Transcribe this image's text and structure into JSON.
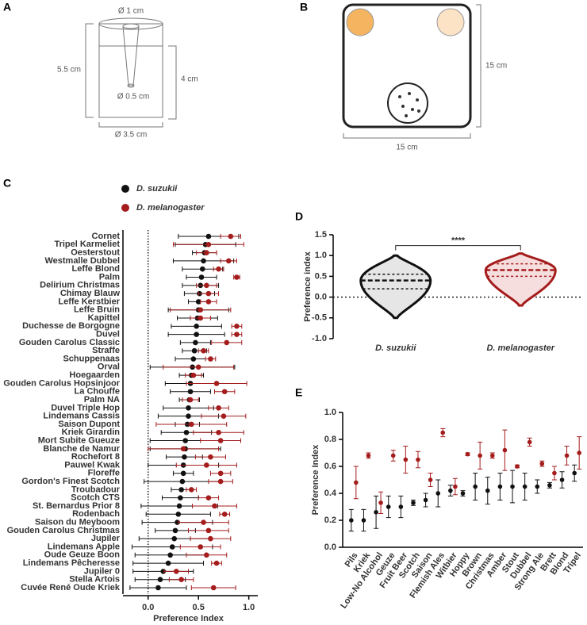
{
  "panel_labels": [
    "A",
    "B",
    "C",
    "D",
    "E"
  ],
  "diagram_a": {
    "top_diameter": "Ø 1 cm",
    "height": "5.5 cm",
    "depth": "4 cm",
    "tip_diameter": "Ø 0.5 cm",
    "base_diameter": "Ø 3.5 cm"
  },
  "diagram_b": {
    "height": "15 cm",
    "width": "15 cm"
  },
  "chart_data": [
    {
      "type": "dot",
      "orientation": "horizontal",
      "xlabel": "Preference Index",
      "categories": [
        "Cornet",
        "Tripel Karmeliet",
        "Oesterstout",
        "Westmalle Dubbel",
        "Leffe Blond",
        "Palm",
        "Delirium Christmas",
        "Chimay Blauw",
        "Leffe Kerstbier",
        "Leffe Bruin",
        "Kapittel",
        "Duchesse de Borgogne",
        "Duvel",
        "Gouden Carolus Classic",
        "Straffe",
        "Schuppenaas",
        "Orval",
        "Hoegaarden",
        "Gouden Carolus Hopsinjoor",
        "La Chouffe",
        "Palm NA",
        "Duvel Triple Hop",
        "Lindemans Cassis",
        "Saison Dupont",
        "Kriek Girardin",
        "Mort Subite Gueuze",
        "Blanche de Namur",
        "Rochefort 8",
        "Pauwel Kwak",
        "Floreffe",
        "Gordon's Finest Scotch",
        "Troubadour",
        "Scotch CTS",
        "St. Bernardus Prior 8",
        "Rodenbach",
        "Saison du Meyboom",
        "Gouden Carolus Christmas",
        "Jupiler",
        "Lindemans Apple",
        "Oude Geuze Boon",
        "Lindemans Pêcheresse",
        "Jupiler 0",
        "Stella Artois",
        "Cuvée René Oude Kriek"
      ],
      "series": [
        {
          "name": "D. suzukii",
          "color": "#111111",
          "values": [
            0.6,
            0.57,
            0.56,
            0.55,
            0.54,
            0.53,
            0.52,
            0.51,
            0.5,
            0.5,
            0.49,
            0.48,
            0.48,
            0.47,
            0.46,
            0.45,
            0.44,
            0.43,
            0.42,
            0.42,
            0.41,
            0.4,
            0.4,
            0.39,
            0.38,
            0.37,
            0.37,
            0.36,
            0.35,
            0.35,
            0.34,
            0.33,
            0.32,
            0.31,
            0.3,
            0.29,
            0.27,
            0.26,
            0.24,
            0.22,
            0.2,
            0.15,
            0.12,
            0.1
          ],
          "errors": [
            0.3,
            0.3,
            0.12,
            0.3,
            0.2,
            0.15,
            0.18,
            0.15,
            0.1,
            0.3,
            0.2,
            0.25,
            0.28,
            0.15,
            0.12,
            0.18,
            0.42,
            0.12,
            0.25,
            0.2,
            0.1,
            0.25,
            0.3,
            0.12,
            0.25,
            0.35,
            0.35,
            0.18,
            0.35,
            0.1,
            0.38,
            0.1,
            0.18,
            0.38,
            0.32,
            0.35,
            0.2,
            0.35,
            0.4,
            0.35,
            0.35,
            0.3,
            0.25,
            0.28
          ]
        },
        {
          "name": "D. melanogaster",
          "color": "#a51c1c",
          "values": [
            0.82,
            0.6,
            0.58,
            0.8,
            0.7,
            0.88,
            0.58,
            0.6,
            0.6,
            0.52,
            0.52,
            0.88,
            0.88,
            0.78,
            0.55,
            0.62,
            0.5,
            0.45,
            0.68,
            0.76,
            0.42,
            0.7,
            0.75,
            0.43,
            0.7,
            0.72,
            0.35,
            0.62,
            0.58,
            0.72,
            0.72,
            0.43,
            0.6,
            0.66,
            0.76,
            0.55,
            0.6,
            0.62,
            0.52,
            0.58,
            0.68,
            0.28,
            0.33,
            0.65
          ],
          "errors": [
            0.1,
            0.35,
            0.1,
            0.08,
            0.05,
            0.03,
            0.1,
            0.1,
            0.08,
            0.3,
            0.1,
            0.05,
            0.05,
            0.15,
            0.05,
            0.05,
            0.35,
            0.08,
            0.3,
            0.1,
            0.08,
            0.1,
            0.22,
            0.35,
            0.25,
            0.2,
            0.35,
            0.15,
            0.3,
            0.1,
            0.12,
            0.05,
            0.1,
            0.22,
            0.05,
            0.25,
            0.2,
            0.2,
            0.2,
            0.2,
            0.05,
            0.12,
            0.12,
            0.22
          ]
        }
      ],
      "xlim": [
        -0.25,
        1.05
      ],
      "xticks": [
        {
          "value": 0,
          "label": "0.0"
        },
        0.5,
        {
          "value": 1,
          "label": "1.0"
        }
      ],
      "legend": "top-left"
    },
    {
      "type": "violin",
      "ylabel": "Preference index",
      "categories": [
        "D. suzukii",
        "D. melanogaster"
      ],
      "colors": [
        "#111111",
        "#a51c1c"
      ],
      "min": [
        -0.5,
        -0.2
      ],
      "q1": [
        0.2,
        0.5
      ],
      "median": [
        0.4,
        0.65
      ],
      "q3": [
        0.55,
        0.8
      ],
      "max": [
        1.0,
        1.05
      ],
      "annotation": "****",
      "ylim": [
        -1,
        1.5
      ],
      "yticks": [
        {
          "value": -1,
          "label": "-1.0"
        },
        -0.5,
        {
          "value": 0,
          "label": "0.0"
        },
        0.5,
        {
          "value": 1,
          "label": "1.0"
        },
        1.5
      ]
    },
    {
      "type": "dot",
      "orientation": "vertical",
      "ylabel": "Preference Index",
      "categories": [
        "Pils",
        "Kriek",
        "Low-No Alcohol",
        "Geuze",
        "Fruit Beer",
        "Scotch",
        "Saison",
        "Flemish Ales",
        "Witbier",
        "Hoppy",
        "Brown",
        "Christmas",
        "Amber",
        "Stout",
        "Dubbel",
        "Strong Ale",
        "Brett",
        "Blond",
        "Tripel"
      ],
      "series": [
        {
          "color": "#111111",
          "values": [
            0.2,
            0.2,
            0.26,
            0.3,
            0.3,
            0.33,
            0.35,
            0.4,
            0.42,
            0.4,
            0.45,
            0.42,
            0.45,
            0.45,
            0.45,
            0.45,
            0.46,
            0.5,
            0.55
          ],
          "errors": [
            0.08,
            0.08,
            0.12,
            0.08,
            0.08,
            0.02,
            0.05,
            0.1,
            0.04,
            0.02,
            0.1,
            0.1,
            0.1,
            0.12,
            0.1,
            0.05,
            0.02,
            0.06,
            0.06
          ]
        },
        {
          "color": "#a51c1c",
          "values": [
            0.48,
            0.68,
            0.33,
            0.68,
            0.65,
            0.65,
            0.5,
            0.85,
            0.45,
            0.69,
            0.68,
            0.68,
            0.72,
            0.6,
            0.78,
            0.62,
            0.55,
            0.68,
            0.7
          ],
          "errors": [
            0.12,
            0.02,
            0.08,
            0.04,
            0.1,
            0.06,
            0.05,
            0.03,
            0.06,
            0.01,
            0.1,
            0.02,
            0.15,
            0.01,
            0.03,
            0.02,
            0.05,
            0.07,
            0.12
          ]
        }
      ],
      "ylim": [
        0,
        1
      ],
      "yticks": [
        {
          "value": 0,
          "label": "0.0"
        },
        0.2,
        0.4,
        0.6,
        0.8,
        {
          "value": 1,
          "label": "1.0"
        }
      ]
    }
  ]
}
